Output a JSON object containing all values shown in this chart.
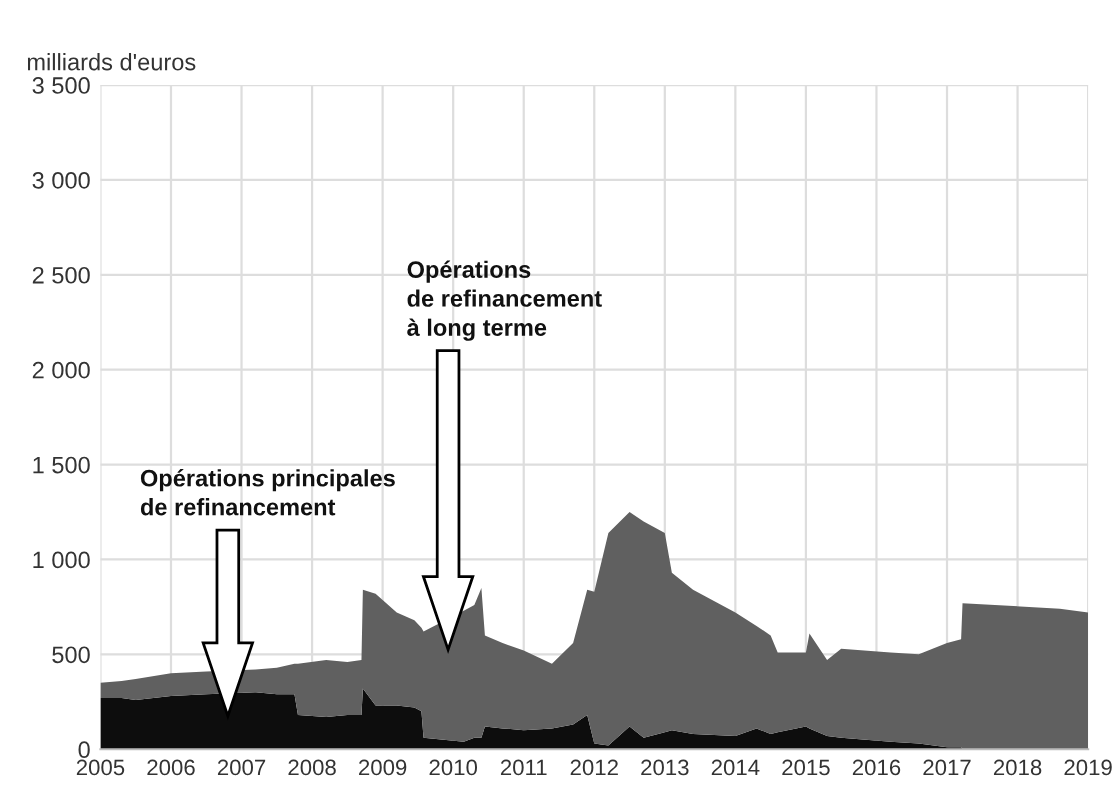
{
  "chart_data": {
    "type": "area",
    "stacked": true,
    "ylabel": "milliards d'euros",
    "x": [
      2005.0,
      2005.3,
      2005.5,
      2006.0,
      2006.5,
      2007.2,
      2007.5,
      2007.75,
      2007.8,
      2008.2,
      2008.5,
      2008.7,
      2008.72,
      2008.9,
      2009.2,
      2009.45,
      2009.55,
      2009.58,
      2010.15,
      2010.3,
      2010.4,
      2010.45,
      2010.7,
      2011.0,
      2011.4,
      2011.7,
      2011.9,
      2012.0,
      2012.2,
      2012.5,
      2012.7,
      2013.0,
      2013.1,
      2013.4,
      2014.0,
      2014.3,
      2014.5,
      2014.6,
      2015.0,
      2015.05,
      2015.3,
      2015.5,
      2016.2,
      2016.6,
      2017.0,
      2017.2,
      2017.22,
      2018.6,
      2019.0
    ],
    "series": [
      {
        "color": "#0d0d0d",
        "values": [
          270,
          270,
          260,
          280,
          290,
          300,
          290,
          290,
          180,
          170,
          180,
          180,
          320,
          230,
          230,
          220,
          200,
          60,
          40,
          60,
          60,
          120,
          110,
          100,
          110,
          130,
          180,
          30,
          20,
          120,
          60,
          90,
          100,
          80,
          70,
          110,
          80,
          90,
          120,
          110,
          70,
          60,
          40,
          30,
          10,
          10,
          0,
          0,
          0
        ]
      },
      {
        "color": "#606060",
        "values": [
          80,
          90,
          110,
          120,
          120,
          120,
          140,
          160,
          270,
          300,
          280,
          290,
          520,
          590,
          490,
          460,
          440,
          560,
          690,
          700,
          790,
          480,
          450,
          420,
          340,
          430,
          660,
          800,
          1120,
          1130,
          1140,
          1050,
          830,
          760,
          650,
          540,
          520,
          420,
          390,
          500,
          400,
          470,
          470,
          470,
          550,
          570,
          770,
          740,
          720
        ]
      }
    ],
    "xlim": [
      2005,
      2019
    ],
    "xticks": [
      2005,
      2006,
      2007,
      2008,
      2009,
      2010,
      2011,
      2012,
      2013,
      2014,
      2015,
      2016,
      2017,
      2018,
      2019
    ],
    "ylim": [
      0,
      3500
    ],
    "yticks": [
      0,
      500,
      {
        "value": 1000,
        "label": "1 000"
      },
      {
        "value": 1500,
        "label": "1 500"
      },
      {
        "value": 2000,
        "label": "2 000"
      },
      {
        "value": 2500,
        "label": "2 500"
      },
      {
        "value": 3000,
        "label": "3 000"
      },
      {
        "value": 3500,
        "label": "3 500"
      }
    ],
    "grid": true,
    "annotations": [
      "Opérations principales\nde refinancement",
      "Opérations\nde refinancement\nà long terme"
    ]
  }
}
